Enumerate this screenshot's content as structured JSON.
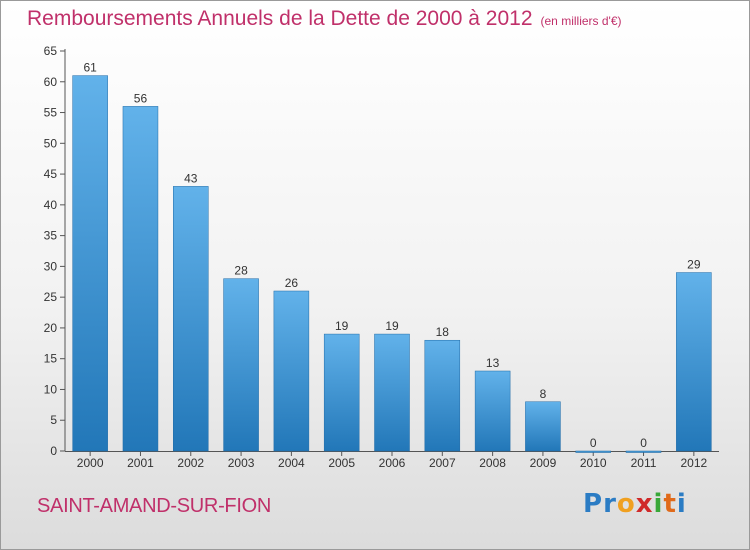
{
  "chart_data": {
    "type": "bar",
    "title": "Remboursements Annuels de la Dette de 2000 à 2012",
    "subtitle": "(en milliers d'€)",
    "categories": [
      "2000",
      "2001",
      "2002",
      "2003",
      "2004",
      "2005",
      "2006",
      "2007",
      "2008",
      "2009",
      "2010",
      "2011",
      "2012"
    ],
    "values": [
      61,
      56,
      43,
      28,
      26,
      19,
      19,
      18,
      13,
      8,
      0,
      0,
      29
    ],
    "ylim": [
      0,
      65
    ],
    "yticks": [
      0,
      5,
      10,
      15,
      20,
      25,
      30,
      35,
      40,
      45,
      50,
      55,
      60,
      65
    ],
    "xlabel": "",
    "ylabel": "",
    "grid": false,
    "bar_color": "#2f86c9"
  },
  "footer": {
    "commune": "SAINT-AMAND-SUR-FION",
    "logo_letters": [
      "P",
      "r",
      "o",
      "x",
      "i",
      "t",
      "i"
    ],
    "logo_colors": [
      "#2b7cc4",
      "#2b7cc4",
      "#f0a020",
      "#d02a2a",
      "#39a839",
      "#e06a1a",
      "#2b7cc4"
    ]
  }
}
